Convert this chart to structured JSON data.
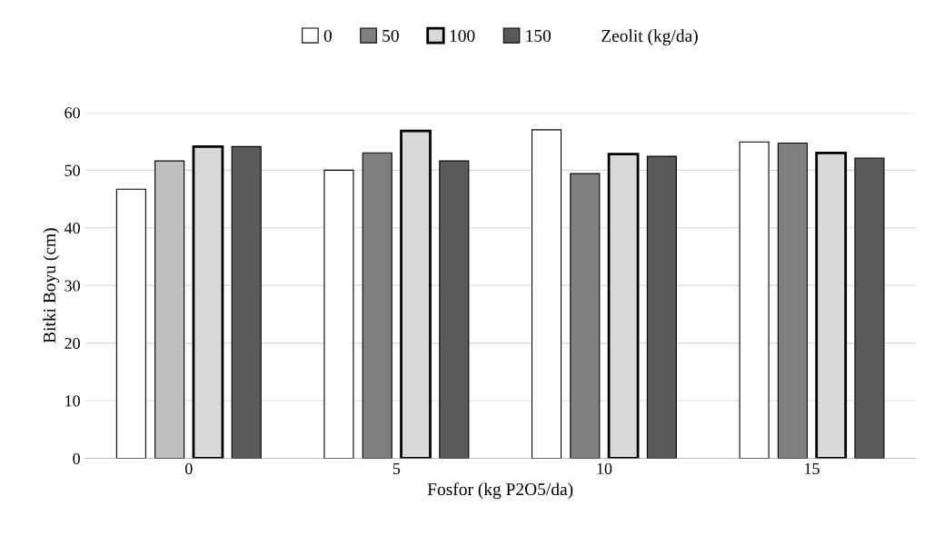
{
  "chart_data": {
    "type": "bar",
    "xlabel": "Fosfor (kg P2O5/da)",
    "ylabel": "Bitki Boyu (cm)",
    "legend_title": "Zeolit (kg/da)",
    "categories": [
      "0",
      "5",
      "10",
      "15"
    ],
    "series": [
      {
        "name": "0",
        "color": "#ffffff",
        "values": [
          46.7,
          50.0,
          57.0,
          54.9
        ]
      },
      {
        "name": "50",
        "color": "#808080",
        "colors": [
          "#bfbfbf",
          "#808080",
          "#808080",
          "#808080"
        ],
        "values": [
          51.6,
          53.0,
          49.4,
          54.7
        ]
      },
      {
        "name": "100",
        "color": "#d9d9d9",
        "values": [
          54.1,
          56.8,
          52.8,
          53.0
        ]
      },
      {
        "name": "150",
        "color": "#595959",
        "values": [
          54.1,
          51.6,
          52.4,
          52.1
        ]
      }
    ],
    "ylim": [
      0,
      60
    ],
    "yticks": [
      0,
      10,
      20,
      30,
      40,
      50,
      60
    ],
    "grid": "y",
    "legend": "top"
  }
}
